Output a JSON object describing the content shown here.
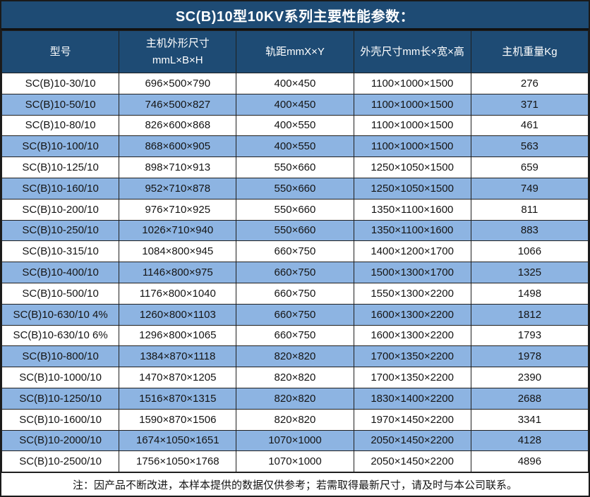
{
  "title": "SC(B)10型10KV系列主要性能参数：",
  "colors": {
    "header_bg": "#1e4b74",
    "row_alt_bg": "#8db4e2",
    "row_bg": "#ffffff",
    "border": "#1f1f1f",
    "header_text": "#ffffff",
    "body_text": "#141414"
  },
  "table": {
    "columns": [
      {
        "lines": [
          "型号"
        ]
      },
      {
        "lines": [
          "主机外形尺寸",
          "mmL×B×H"
        ]
      },
      {
        "lines": [
          "轨距mmX×Y"
        ]
      },
      {
        "lines": [
          "外壳尺寸mm长×宽×高"
        ]
      },
      {
        "lines": [
          "主机重量Kg"
        ]
      }
    ],
    "rows": [
      [
        "SC(B)10-30/10",
        "696×500×790",
        "400×450",
        "1100×1000×1500",
        "276"
      ],
      [
        "SC(B)10-50/10",
        "746×500×827",
        "400×450",
        "1100×1000×1500",
        "371"
      ],
      [
        "SC(B)10-80/10",
        "826×600×868",
        "400×550",
        "1100×1000×1500",
        "461"
      ],
      [
        "SC(B)10-100/10",
        "868×600×905",
        "400×550",
        "1100×1000×1500",
        "563"
      ],
      [
        "SC(B)10-125/10",
        "898×710×913",
        "550×660",
        "1250×1050×1500",
        "659"
      ],
      [
        "SC(B)10-160/10",
        "952×710×878",
        "550×660",
        "1250×1050×1500",
        "749"
      ],
      [
        "SC(B)10-200/10",
        "976×710×925",
        "550×660",
        "1350×1100×1600",
        "811"
      ],
      [
        "SC(B)10-250/10",
        "1026×710×940",
        "550×660",
        "1350×1100×1600",
        "883"
      ],
      [
        "SC(B)10-315/10",
        "1084×800×945",
        "660×750",
        "1400×1200×1700",
        "1066"
      ],
      [
        "SC(B)10-400/10",
        "1146×800×975",
        "660×750",
        "1500×1300×1700",
        "1325"
      ],
      [
        "SC(B)10-500/10",
        "1176×800×1040",
        "660×750",
        "1550×1300×2200",
        "1498"
      ],
      [
        "SC(B)10-630/10 4%",
        "1260×800×1103",
        "660×750",
        "1600×1300×2200",
        "1812"
      ],
      [
        "SC(B)10-630/10 6%",
        "1296×800×1065",
        "660×750",
        "1600×1300×2200",
        "1793"
      ],
      [
        "SC(B)10-800/10",
        "1384×870×1118",
        "820×820",
        "1700×1350×2200",
        "1978"
      ],
      [
        "SC(B)10-1000/10",
        "1470×870×1205",
        "820×820",
        "1700×1350×2200",
        "2390"
      ],
      [
        "SC(B)10-1250/10",
        "1516×870×1315",
        "820×820",
        "1830×1400×2200",
        "2688"
      ],
      [
        "SC(B)10-1600/10",
        "1590×870×1506",
        "820×820",
        "1970×1450×2200",
        "3341"
      ],
      [
        "SC(B)10-2000/10",
        "1674×1050×1651",
        "1070×1000",
        "2050×1450×2200",
        "4128"
      ],
      [
        "SC(B)10-2500/10",
        "1756×1050×1768",
        "1070×1000",
        "2050×1450×2200",
        "4896"
      ]
    ],
    "note": "注：因产品不断改进，本样本提供的数据仅供参考；若需取得最新尺寸，请及时与本公司联系。"
  }
}
